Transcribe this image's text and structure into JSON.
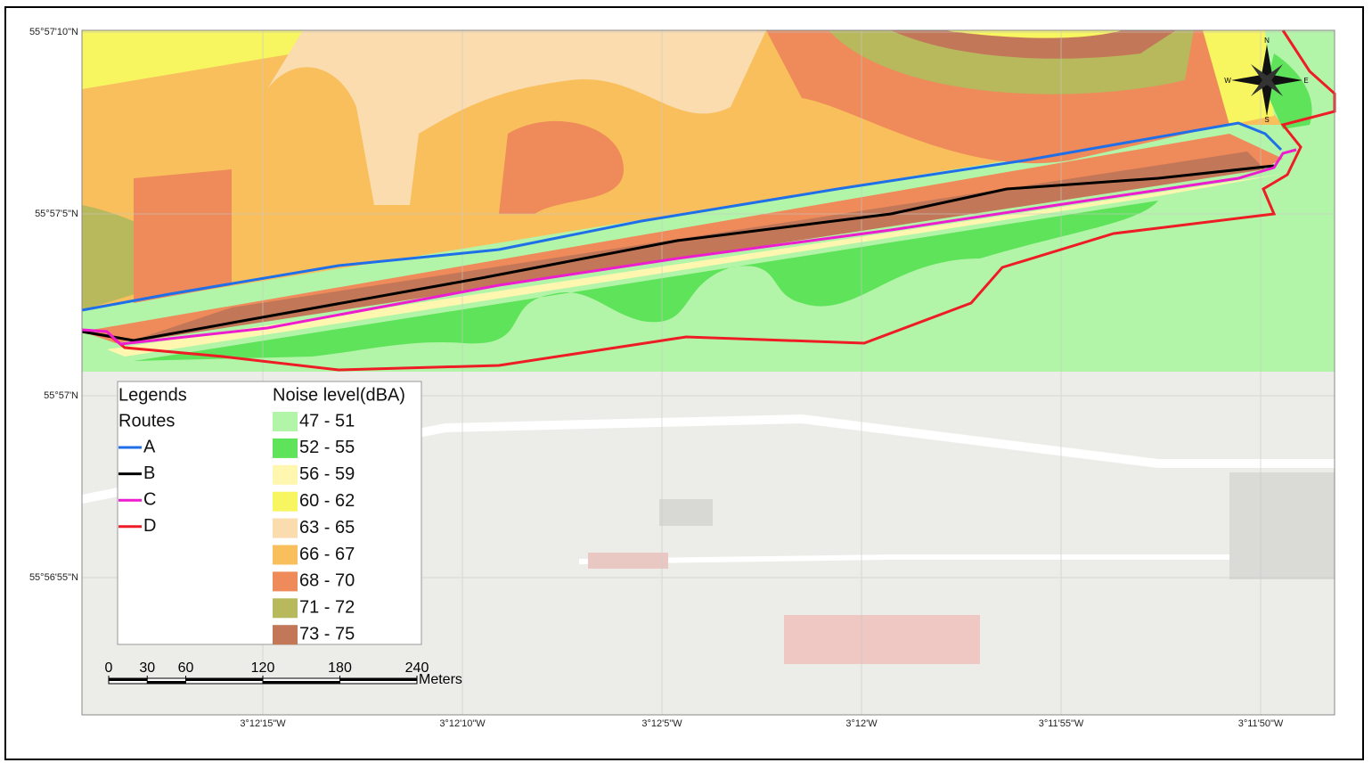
{
  "map": {
    "lat_labels": [
      "55°57'10\"N",
      "55°57'5\"N",
      "55°57'N",
      "55°56'55\"N"
    ],
    "lon_labels": [
      "3°12'15\"W",
      "3°12'10\"W",
      "3°12'5\"W",
      "3°12'W",
      "3°11'55\"W",
      "3°11'50\"W"
    ],
    "compass": [
      "N",
      "E",
      "S",
      "W"
    ],
    "legend": {
      "title": "Legends",
      "routes_title": "Routes",
      "routes": [
        {
          "name": "A",
          "color": "#1f6fe8"
        },
        {
          "name": "B",
          "color": "#000000"
        },
        {
          "name": "C",
          "color": "#ee1ccf"
        },
        {
          "name": "D",
          "color": "#ee1c24"
        }
      ],
      "noise_title": "Noise level(dBA)",
      "noise": [
        {
          "label": "47 - 51",
          "color": "#b3f5a8"
        },
        {
          "label": "52 - 55",
          "color": "#5fe35a"
        },
        {
          "label": "56 - 59",
          "color": "#fff6b0"
        },
        {
          "label": "60 - 62",
          "color": "#f7f560"
        },
        {
          "label": "63 - 65",
          "color": "#fbdcae"
        },
        {
          "label": "66 - 67",
          "color": "#f9bf5c"
        },
        {
          "label": "68 - 70",
          "color": "#ef8a5a"
        },
        {
          "label": "71 - 72",
          "color": "#b8b85c"
        },
        {
          "label": "73 - 75",
          "color": "#c27858"
        }
      ]
    },
    "scale": {
      "ticks": [
        0,
        30,
        60,
        120,
        180,
        240
      ],
      "unit": "Meters"
    }
  }
}
